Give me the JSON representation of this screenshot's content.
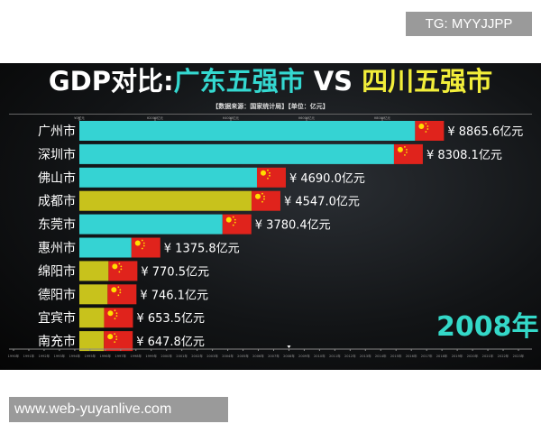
{
  "watermark_top": "TG: MYYJJPP",
  "watermark_bottom": "www.web-yuyanlive.com",
  "chart_data": {
    "type": "bar",
    "orientation": "horizontal",
    "title_prefix": "GDP对比:",
    "title_a": "广东五强市",
    "title_vs": " VS ",
    "title_b": "四川五强市",
    "subtitle": "【数据来源：国家统计局】【单位：亿元】",
    "year_label": "2008年",
    "value_prefix": "¥",
    "value_suffix": "亿元",
    "xlim": [
      0,
      10000
    ],
    "x_ticks": [
      0,
      2000,
      4000,
      6000,
      8000
    ],
    "x_tick_labels": [
      "¥0亿元",
      "¥2000亿元",
      "¥4000亿元",
      "¥6000亿元",
      "¥8000亿元"
    ],
    "categories": [
      "广州市",
      "深圳市",
      "佛山市",
      "成都市",
      "东莞市",
      "惠州市",
      "绵阳市",
      "德阳市",
      "宜宾市",
      "南充市"
    ],
    "values": [
      8865.6,
      8308.1,
      4690.0,
      4547.0,
      3780.4,
      1375.8,
      770.5,
      746.1,
      653.5,
      647.8
    ],
    "value_labels": [
      "8865.6",
      "8308.1",
      "4690.0",
      "4547.0",
      "3780.4",
      "1375.8",
      "770.5",
      "746.1",
      "653.5",
      "647.8"
    ],
    "groups": [
      "广东",
      "广东",
      "广东",
      "四川",
      "广东",
      "广东",
      "四川",
      "四川",
      "四川",
      "四川"
    ],
    "colors": {
      "广东": "#35d3d3",
      "四川": "#c8c21c"
    },
    "timeline": {
      "start": 1990,
      "end": 2023,
      "current": 2008,
      "suffix": "年"
    }
  }
}
